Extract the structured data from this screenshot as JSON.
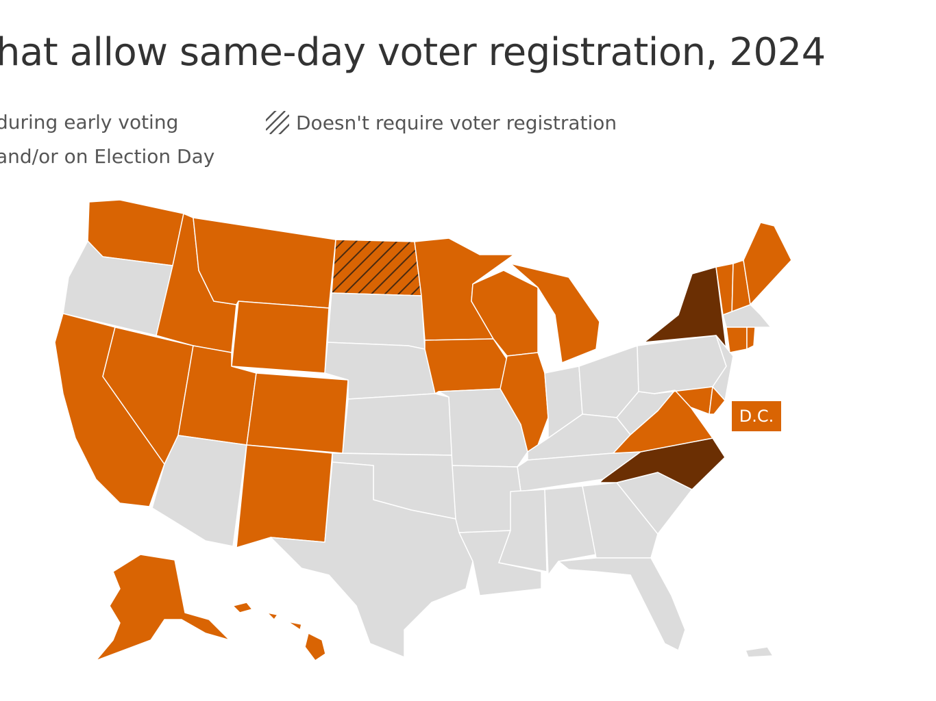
{
  "title": "hat allow same-day voter registration, 2024",
  "legend": {
    "early_voting": "during early voting",
    "election_day": "and/or on Election Day",
    "no_registration": "Doesn't require voter registration"
  },
  "dc_label": "D.C.",
  "colors": {
    "orange": "#d96403",
    "dark_brown": "#6b2f03",
    "gray": "#dcdcdc",
    "border": "#ffffff",
    "hatch_stroke": "#4a2a10"
  },
  "map_data": {
    "same_day_registration_states": [
      "WA",
      "MT",
      "ID",
      "WY",
      "CA",
      "NV",
      "UT",
      "CO",
      "NM",
      "MN",
      "IA",
      "WI",
      "MI",
      "IL",
      "ME",
      "VT",
      "NH",
      "CT",
      "RI",
      "MD",
      "VA",
      "DE",
      "AK",
      "HI",
      "DC"
    ],
    "early_voting_only_states": [
      "NY",
      "NC"
    ],
    "no_registration_required_states": [
      "ND"
    ],
    "no_same_day_states": [
      "OR",
      "AZ",
      "SD",
      "NE",
      "KS",
      "OK",
      "TX",
      "MO",
      "AR",
      "LA",
      "MS",
      "AL",
      "TN",
      "KY",
      "IN",
      "OH",
      "WV",
      "PA",
      "NJ",
      "MA",
      "GA",
      "SC",
      "FL",
      "PR"
    ]
  }
}
